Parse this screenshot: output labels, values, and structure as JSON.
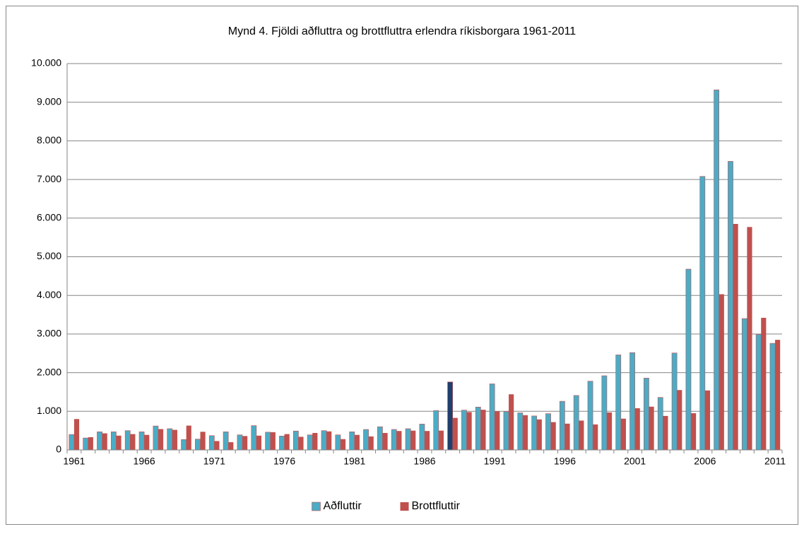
{
  "chart_data": {
    "type": "bar",
    "title": "Mynd 4. Fjöldi aðfluttra og brottfluttra erlendra ríkisborgara 1961-2011",
    "categories": [
      "1961",
      null,
      null,
      null,
      null,
      "1966",
      null,
      null,
      null,
      null,
      "1971",
      null,
      null,
      null,
      null,
      "1976",
      null,
      null,
      null,
      null,
      "1981",
      null,
      null,
      null,
      null,
      "1986",
      null,
      null,
      null,
      null,
      "1991",
      null,
      null,
      null,
      null,
      "1996",
      null,
      null,
      null,
      null,
      "2001",
      null,
      null,
      null,
      null,
      "2006",
      null,
      null,
      null,
      null,
      "2011"
    ],
    "series": [
      {
        "name": "Aðfluttir",
        "color": "#4bacc6",
        "colors": [
          "#4bacc6",
          "#4bacc6",
          "#4bacc6",
          "#4bacc6",
          "#4bacc6",
          "#4bacc6",
          "#4bacc6",
          "#4bacc6",
          "#4bacc6",
          "#4bacc6",
          "#4bacc6",
          "#4bacc6",
          "#4bacc6",
          "#4bacc6",
          "#4bacc6",
          "#4bacc6",
          "#4bacc6",
          "#4bacc6",
          "#4bacc6",
          "#4bacc6",
          "#4bacc6",
          "#4bacc6",
          "#4bacc6",
          "#4bacc6",
          "#4bacc6",
          "#4bacc6",
          "#4bacc6",
          "#1f3f6e",
          "#4bacc6",
          "#4bacc6",
          "#4bacc6",
          "#4bacc6",
          "#4bacc6",
          "#4bacc6",
          "#4bacc6",
          "#4bacc6",
          "#4bacc6",
          "#4bacc6",
          "#4bacc6",
          "#4bacc6",
          "#4bacc6",
          "#4bacc6",
          "#4bacc6",
          "#4bacc6",
          "#4bacc6",
          "#4bacc6",
          "#4bacc6",
          "#4bacc6",
          "#4bacc6",
          "#4bacc6",
          "#4bacc6"
        ],
        "values": [
          400,
          310,
          470,
          470,
          500,
          470,
          620,
          550,
          270,
          280,
          370,
          470,
          390,
          630,
          460,
          360,
          490,
          390,
          500,
          390,
          470,
          530,
          600,
          530,
          550,
          670,
          1020,
          1760,
          1030,
          1110,
          1710,
          990,
          960,
          880,
          940,
          1260,
          1410,
          1780,
          1920,
          2460,
          2520,
          1860,
          1360,
          2510,
          4680,
          7080,
          9320,
          7470,
          3400,
          2990,
          2760
        ]
      },
      {
        "name": "Brottfluttir",
        "color": "#c0504d",
        "values": [
          800,
          330,
          430,
          370,
          410,
          390,
          540,
          520,
          630,
          470,
          230,
          200,
          360,
          370,
          460,
          410,
          340,
          440,
          480,
          280,
          390,
          350,
          440,
          490,
          500,
          490,
          500,
          830,
          980,
          1040,
          1000,
          1440,
          900,
          790,
          720,
          680,
          760,
          660,
          970,
          810,
          1080,
          1120,
          880,
          1550,
          950,
          1540,
          4030,
          5850,
          5770,
          3420,
          2850
        ]
      }
    ],
    "ylim": [
      0,
      10000
    ],
    "yticks": [
      0,
      {
        "value": 1000,
        "label": "1.000"
      },
      {
        "value": 2000,
        "label": "2.000"
      },
      {
        "value": 3000,
        "label": "3.000"
      },
      {
        "value": 4000,
        "label": "4.000"
      },
      {
        "value": 5000,
        "label": "5.000"
      },
      {
        "value": 6000,
        "label": "6.000"
      },
      {
        "value": 7000,
        "label": "7.000"
      },
      {
        "value": 8000,
        "label": "8.000"
      },
      {
        "value": 9000,
        "label": "9.000"
      },
      {
        "value": 10000,
        "label": "10.000"
      }
    ],
    "grid": true,
    "legend": "bottom"
  }
}
